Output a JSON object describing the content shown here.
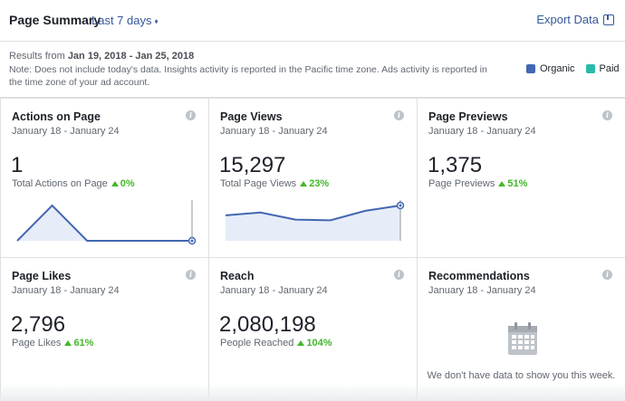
{
  "header": {
    "title": "Page Summary",
    "range_label": "Last 7 days",
    "range_caret": "♦",
    "export_label": "Export Data",
    "export_icon": "export-icon"
  },
  "info": {
    "results_prefix": "Results from",
    "results_range": "Jan 19, 2018 - Jan 25, 2018",
    "note": "Note: Does not include today's data. Insights activity is reported in the Pacific time zone. Ads activity is reported in the time zone of your ad account."
  },
  "legend": [
    {
      "label": "Organic",
      "color": "#4267b2"
    },
    {
      "label": "Paid",
      "color": "#2abba7"
    }
  ],
  "cards": {
    "actions": {
      "title": "Actions on Page",
      "dates": "January 18 - January 24",
      "value": "1",
      "metric_label": "Total Actions on Page",
      "delta": "0%",
      "sparkline": [
        0,
        1,
        0,
        0,
        0,
        0
      ]
    },
    "views": {
      "title": "Page Views",
      "dates": "January 18 - January 24",
      "value": "15,297",
      "metric_label": "Total Page Views",
      "delta": "23%",
      "sparkline": [
        0.72,
        0.8,
        0.6,
        0.58,
        0.85,
        1.0
      ]
    },
    "previews": {
      "title": "Page Previews",
      "dates": "January 18 - January 24",
      "value": "1,375",
      "metric_label": "Page Previews",
      "delta": "51%"
    },
    "likes": {
      "title": "Page Likes",
      "dates": "January 18 - January 24",
      "value": "2,796",
      "metric_label": "Page Likes",
      "delta": "61%"
    },
    "reach": {
      "title": "Reach",
      "dates": "January 18 - January 24",
      "value": "2,080,198",
      "metric_label": "People Reached",
      "delta": "104%"
    },
    "recommendations": {
      "title": "Recommendations",
      "dates": "January 18 - January 24",
      "empty_text": "We don't have data to show you this week.",
      "icon": "calendar-icon"
    }
  },
  "colors": {
    "link": "#365899",
    "positive": "#42b72a",
    "line": "#4267b2",
    "area": "#e7edf8"
  }
}
